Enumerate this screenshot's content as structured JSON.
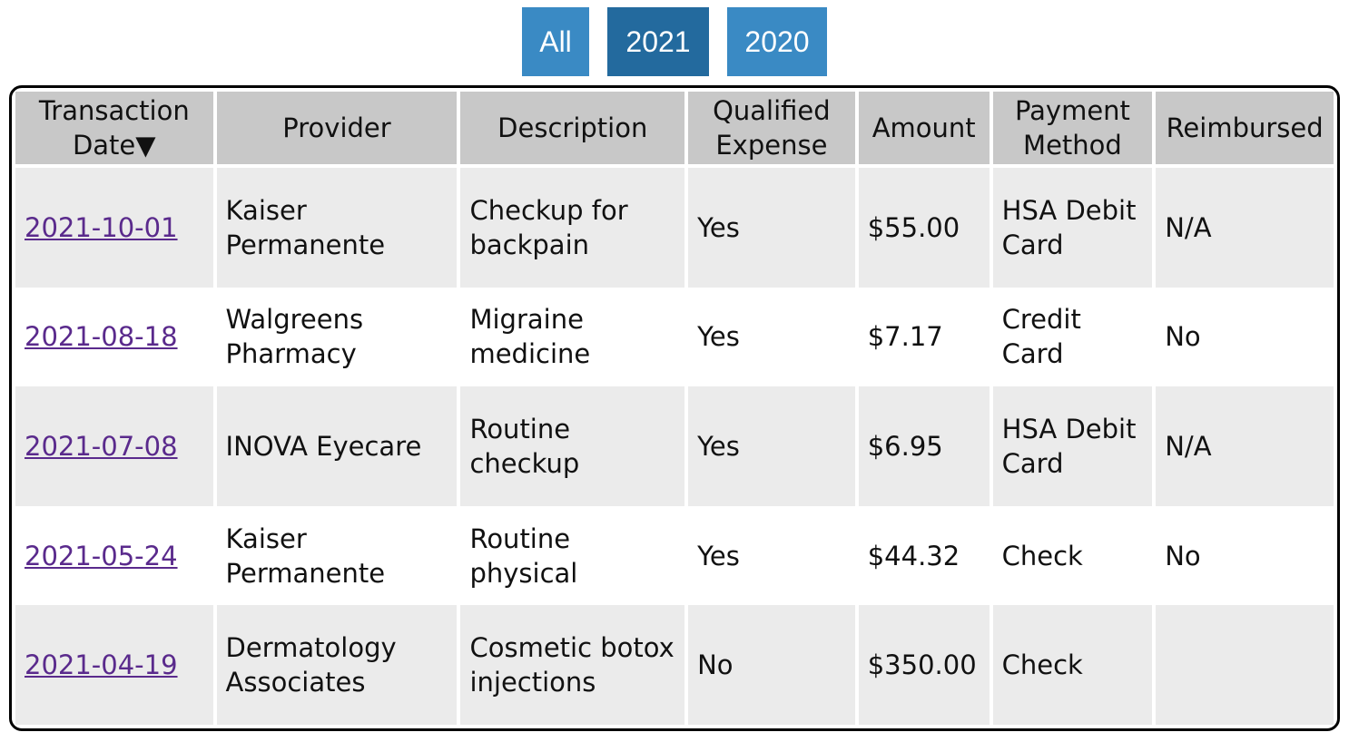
{
  "filters": [
    {
      "label": "All"
    },
    {
      "label": "2021"
    },
    {
      "label": "2020"
    }
  ],
  "table": {
    "headers": {
      "transaction_date": "Transaction Date▼",
      "provider": "Provider",
      "description": "Description",
      "qualified_expense": "Qualified Expense",
      "amount": "Amount",
      "payment_method": "Payment Method",
      "reimbursed": "Reimbursed"
    },
    "rows": [
      {
        "date": "2021-10-01",
        "provider": "Kaiser Permanente",
        "description": "Checkup for backpain",
        "qualified": "Yes",
        "amount": "$55.00",
        "payment": "HSA Debit Card",
        "reimbursed": "N/A"
      },
      {
        "date": "2021-08-18",
        "provider": "Walgreens Pharmacy",
        "description": "Migraine medicine",
        "qualified": "Yes",
        "amount": "$7.17",
        "payment": "Credit Card",
        "reimbursed": "No"
      },
      {
        "date": "2021-07-08",
        "provider": "INOVA Eyecare",
        "description": "Routine checkup",
        "qualified": "Yes",
        "amount": "$6.95",
        "payment": "HSA Debit Card",
        "reimbursed": "N/A"
      },
      {
        "date": "2021-05-24",
        "provider": "Kaiser Permanente",
        "description": "Routine physical",
        "qualified": "Yes",
        "amount": "$44.32",
        "payment": "Check",
        "reimbursed": "No"
      },
      {
        "date": "2021-04-19",
        "provider": "Dermatology Associates",
        "description": "Cosmetic botox injections",
        "qualified": "No",
        "amount": "$350.00",
        "payment": "Check",
        "reimbursed": ""
      }
    ]
  }
}
